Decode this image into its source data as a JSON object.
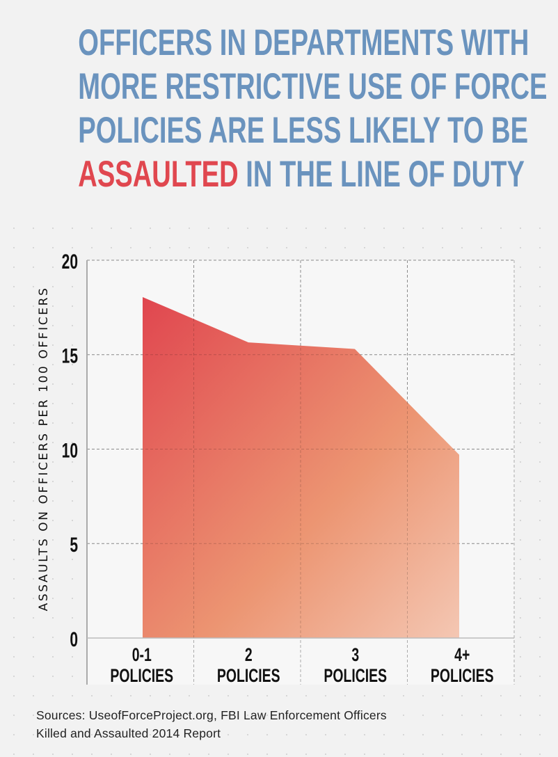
{
  "title": {
    "line1": "Officers in departments with",
    "line2": "more restrictive use of force",
    "line3": "policies are less likely to be",
    "highlight": "Assaulted",
    "line4_rest": " in the line of duty"
  },
  "colors": {
    "title": "#6a93be",
    "highlight": "#e0474f",
    "area_top": "#e0474f",
    "area_bottom": "#f3c3ad"
  },
  "chart_data": {
    "type": "area",
    "title": "",
    "xlabel": "",
    "ylabel": "ASSAULTS ON OFFICERS PER 100 OFFICERS",
    "categories": [
      [
        "0-1",
        "POLICIES"
      ],
      [
        "2",
        "POLICIES"
      ],
      [
        "3",
        "POLICIES"
      ],
      [
        "4+",
        "POLICIES"
      ]
    ],
    "values": [
      18.05,
      15.65,
      15.3,
      9.7
    ],
    "ylim": [
      0,
      20
    ],
    "yticks": [
      "0",
      "5",
      "10",
      "15",
      "20"
    ],
    "grid": true
  },
  "source": {
    "line1": "Sources: UseofForceProject.org, FBI Law Enforcement Officers",
    "line2": "Killed and Assaulted 2014 Report"
  }
}
